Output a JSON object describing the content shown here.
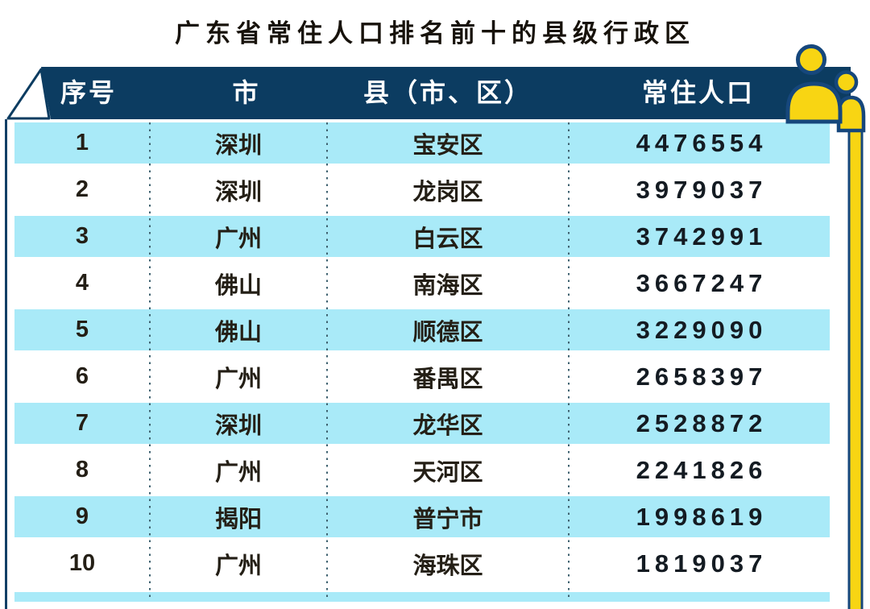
{
  "title": "广东省常住人口排名前十的县级行政区",
  "header": {
    "col_rank": "序号",
    "col_city": "市",
    "col_county": "县（市、区）",
    "col_population": "常住人口"
  },
  "chart_data": {
    "type": "table",
    "title": "广东省常住人口排名前十的县级行政区",
    "columns": [
      "序号",
      "市",
      "县（市、区）",
      "常住人口"
    ],
    "rows": [
      {
        "rank": "1",
        "city": "深圳",
        "county": "宝安区",
        "population": "4476554"
      },
      {
        "rank": "2",
        "city": "深圳",
        "county": "龙岗区",
        "population": "3979037"
      },
      {
        "rank": "3",
        "city": "广州",
        "county": "白云区",
        "population": "3742991"
      },
      {
        "rank": "4",
        "city": "佛山",
        "county": "南海区",
        "population": "3667247"
      },
      {
        "rank": "5",
        "city": "佛山",
        "county": "顺德区",
        "population": "3229090"
      },
      {
        "rank": "6",
        "city": "广州",
        "county": "番禺区",
        "population": "2658397"
      },
      {
        "rank": "7",
        "city": "深圳",
        "county": "龙华区",
        "population": "2528872"
      },
      {
        "rank": "8",
        "city": "广州",
        "county": "天河区",
        "population": "2241826"
      },
      {
        "rank": "9",
        "city": "揭阳",
        "county": "普宁市",
        "population": "1998619"
      },
      {
        "rank": "10",
        "city": "广州",
        "county": "海珠区",
        "population": "1819037"
      }
    ]
  },
  "icon": {
    "name": "people-icon"
  },
  "colors": {
    "banner_navy": "#0c3c61",
    "icon_outline_navy": "#16477c",
    "row_cyan": "#a9eaf8",
    "accent_yellow": "#f8d513",
    "divider_dots": "#3f6270"
  }
}
